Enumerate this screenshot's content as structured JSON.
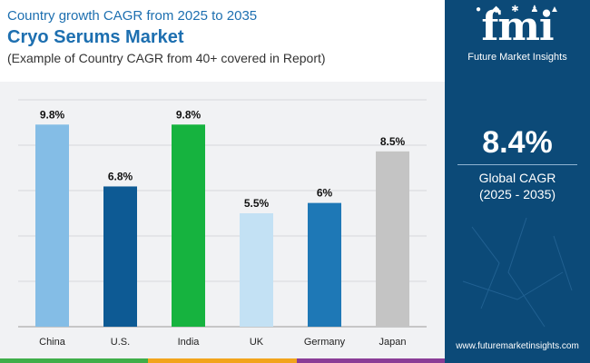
{
  "header": {
    "kicker": "Country growth CAGR from 2025 to 2035",
    "title": "Cryo Serums Market",
    "subtitle": "(Example of Country CAGR from 40+ covered in Report)"
  },
  "chart_data": {
    "type": "bar",
    "categories": [
      "China",
      "U.S.",
      "India",
      "UK",
      "Germany",
      "Japan"
    ],
    "values": [
      9.8,
      6.8,
      9.8,
      5.5,
      6,
      8.5
    ],
    "value_labels": [
      "9.8%",
      "6.8%",
      "9.8%",
      "5.5%",
      "6%",
      "8.5%"
    ],
    "colors": [
      "#84bde6",
      "#0d5a94",
      "#16b33f",
      "#c3e1f4",
      "#1e78b6",
      "#c4c4c4"
    ],
    "title": "",
    "xlabel": "",
    "ylabel": "",
    "ylim": [
      0,
      11
    ],
    "grid": true
  },
  "sidebar": {
    "logo_word": "fmi",
    "logo_text": "Future Market Insights",
    "metric_value": "8.4%",
    "metric_label": "Global CAGR",
    "metric_range": "(2025 - 2035)",
    "website": "www.futuremarketinsights.com"
  },
  "colors": {
    "brand_blue": "#1d6fb0",
    "sidebar_bg": "#0c4a78",
    "chart_bg": "#f1f2f4",
    "bottom_bar": [
      "#3fae49",
      "#f2a41c",
      "#8a3d96"
    ]
  }
}
